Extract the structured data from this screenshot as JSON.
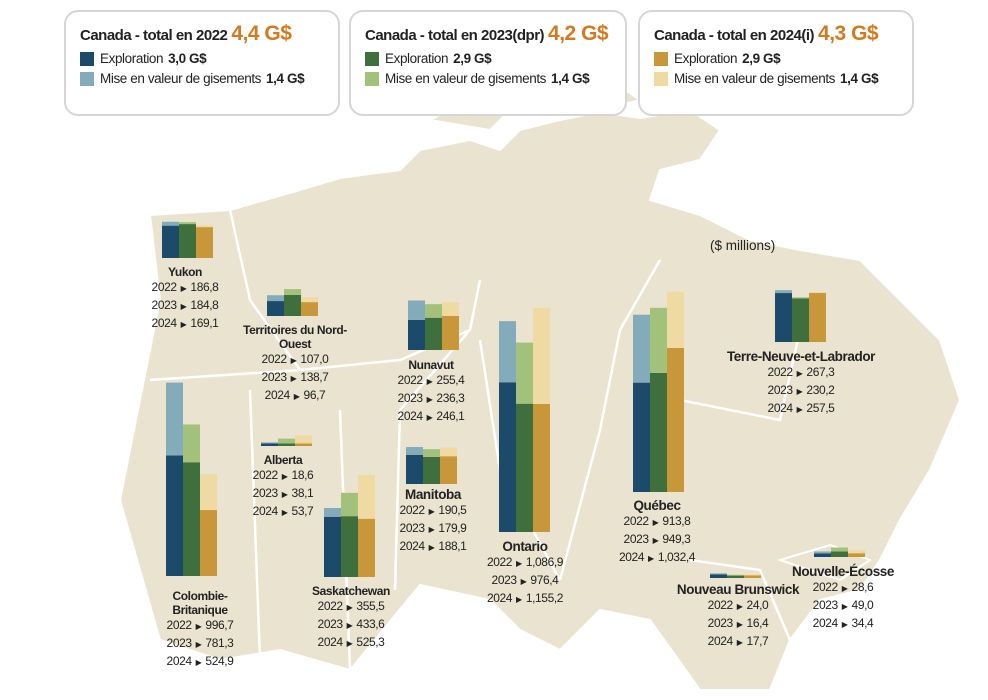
{
  "units": "($ millions)",
  "years": [
    2022,
    2023,
    2024
  ],
  "legends": [
    {
      "title": "Canada - total en 2022",
      "total": "4,4 G$",
      "exploration_label": "Exploration",
      "exploration": "3,0 G$",
      "development_label": "Mise en valeur de gisements",
      "development": "1,4 G$",
      "colors": [
        "#1b4a6b",
        "#84abb9"
      ]
    },
    {
      "title": "Canada - total en 2023(dpr)",
      "total": "4,2 G$",
      "exploration_label": "Exploration",
      "exploration": "2,9 G$",
      "development_label": "Mise en valeur de gisements",
      "development": "1,4 G$",
      "colors": [
        "#3e6f3d",
        "#a2c27b"
      ]
    },
    {
      "title": "Canada - total en 2024(i)",
      "total": "4,3 G$",
      "exploration_label": "Exploration",
      "exploration": "2,9 G$",
      "development_label": "Mise en valeur de gisements",
      "development": "1,4 G$",
      "colors": [
        "#c8973a",
        "#eedaa2"
      ]
    }
  ],
  "provinces": [
    {
      "name": "Yukon",
      "values": [
        186.8,
        184.8,
        169.1
      ],
      "value_labels": [
        "186,8",
        "184,8",
        "169,1"
      ],
      "exploration": [
        166.8,
        174.8,
        159.1
      ],
      "development": [
        20,
        10,
        10
      ]
    },
    {
      "name": "Territoires du Nord-Ouest",
      "values": [
        107.0,
        138.7,
        96.7
      ],
      "value_labels": [
        "107,0",
        "138,7",
        "96,7"
      ],
      "exploration": [
        77.0,
        108.7,
        71.7
      ],
      "development": [
        30,
        30,
        25
      ]
    },
    {
      "name": "Nunavut",
      "values": [
        255.4,
        236.3,
        246.1
      ],
      "value_labels": [
        "255,4",
        "236,3",
        "246,1"
      ],
      "exploration": [
        155.4,
        166.3,
        176.1
      ],
      "development": [
        100,
        70,
        70
      ]
    },
    {
      "name": "Alberta",
      "values": [
        18.6,
        38.1,
        53.7
      ],
      "value_labels": [
        "18,6",
        "38,1",
        "53,7"
      ],
      "exploration": [
        13.6,
        13.1,
        13.7
      ],
      "development": [
        5,
        25,
        40
      ]
    },
    {
      "name": "Manitoba",
      "values": [
        190.5,
        179.9,
        188.1
      ],
      "value_labels": [
        "190,5",
        "179,9",
        "188,1"
      ],
      "exploration": [
        150.5,
        139.9,
        143.1
      ],
      "development": [
        40,
        40,
        45
      ]
    },
    {
      "name": "Saskatchewan",
      "values": [
        355.5,
        433.6,
        525.3
      ],
      "value_labels": [
        "355,5",
        "433,6",
        "525,3"
      ],
      "exploration": [
        310.5,
        313.6,
        300.3
      ],
      "development": [
        45,
        120,
        225
      ]
    },
    {
      "name": "Colombie-Britanique",
      "values": [
        996.7,
        781.3,
        524.9
      ],
      "value_labels": [
        "996,7",
        "781,3",
        "524,9"
      ],
      "exploration": [
        621.7,
        586.3,
        339.9
      ],
      "development": [
        375,
        195,
        185
      ]
    },
    {
      "name": "Ontario",
      "values": [
        1086.9,
        976.4,
        1155.2
      ],
      "value_labels": [
        "1,086,9",
        "976,4",
        "1,155,2"
      ],
      "exploration": [
        771.9,
        661.4,
        660.2
      ],
      "development": [
        315,
        315,
        495
      ]
    },
    {
      "name": "Québec",
      "values": [
        913.8,
        949.3,
        1032.4
      ],
      "value_labels": [
        "913,8",
        "949,3",
        "1,032,4"
      ],
      "exploration": [
        563.8,
        614.3,
        742.4
      ],
      "development": [
        350,
        335,
        290
      ]
    },
    {
      "name": "Terre-Neuve-et-Labrador",
      "values": [
        267.3,
        230.2,
        257.5
      ],
      "value_labels": [
        "267,3",
        "230,2",
        "257,5"
      ],
      "exploration": [
        252.3,
        225.2,
        252.5
      ],
      "development": [
        15,
        5,
        5
      ]
    },
    {
      "name": "Nouveau Brunswick",
      "values": [
        24.0,
        16.4,
        17.7
      ],
      "value_labels": [
        "24,0",
        "16,4",
        "17,7"
      ],
      "exploration": [
        19.0,
        12.4,
        13.7
      ],
      "development": [
        5,
        4,
        4
      ]
    },
    {
      "name": "Nouvelle-Écosse",
      "values": [
        28.6,
        49.0,
        34.4
      ],
      "value_labels": [
        "28,6",
        "49,0",
        "34,4"
      ],
      "exploration": [
        18.6,
        29.0,
        19.4
      ],
      "development": [
        10,
        20,
        15
      ]
    }
  ]
}
